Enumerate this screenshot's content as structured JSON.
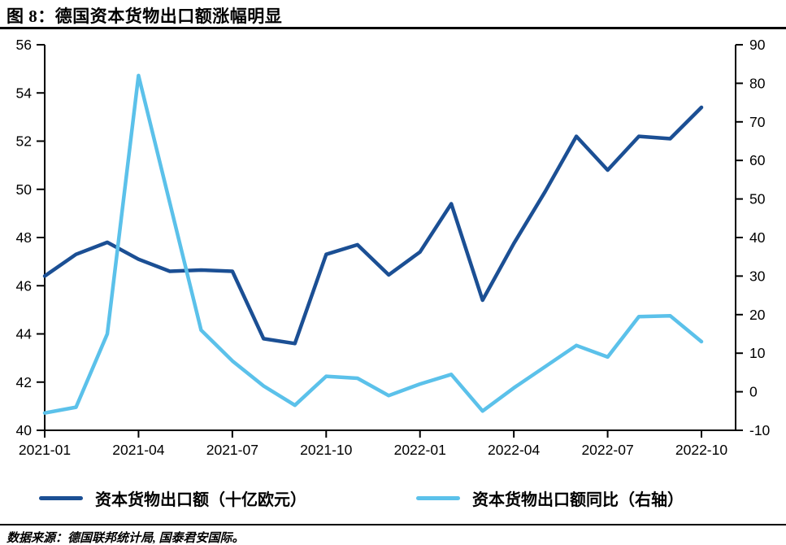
{
  "title": "图 8：德国资本货物出口额涨幅明显",
  "footer": {
    "source_note": "数据来源：德国联邦统计局, 国泰君安国际。"
  },
  "colors": {
    "dark_blue": "#1B4F94",
    "light_blue": "#5BC1EA",
    "axis_black": "#000000"
  },
  "chart_data": {
    "type": "line",
    "title": "图 8：德国资本货物出口额涨幅明显",
    "x": [
      "2021-01",
      "2021-02",
      "2021-03",
      "2021-04",
      "2021-05",
      "2021-06",
      "2021-07",
      "2021-08",
      "2021-09",
      "2021-10",
      "2021-11",
      "2021-12",
      "2022-01",
      "2022-02",
      "2022-03",
      "2022-04",
      "2022-05",
      "2022-06",
      "2022-07",
      "2022-08",
      "2022-09",
      "2022-10"
    ],
    "x_tick_labels": [
      "2021-01",
      "2021-04",
      "2021-07",
      "2021-10",
      "2022-01",
      "2022-04",
      "2022-07",
      "2022-10"
    ],
    "series": [
      {
        "name": "资本货物出口额（十亿欧元）",
        "axis": "left",
        "color": "#1B4F94",
        "values": [
          46.4,
          47.3,
          47.8,
          47.1,
          46.6,
          46.65,
          46.6,
          43.8,
          43.6,
          47.3,
          47.7,
          46.45,
          47.4,
          49.4,
          45.4,
          47.75,
          49.9,
          52.2,
          50.8,
          52.2,
          52.1,
          53.4
        ]
      },
      {
        "name": "资本货物出口额同比（右轴）",
        "axis": "right",
        "color": "#5BC1EA",
        "values": [
          -5.5,
          -4,
          15,
          82,
          49,
          16,
          8,
          1.5,
          -3.5,
          4,
          3.5,
          -1,
          2,
          4.5,
          -5,
          1,
          6.5,
          12,
          9,
          19.5,
          19.7,
          13
        ]
      }
    ],
    "left_axis": {
      "min": 40,
      "max": 56,
      "ticks": [
        40,
        42,
        44,
        46,
        48,
        50,
        52,
        54,
        56
      ]
    },
    "right_axis": {
      "min": -10,
      "max": 90,
      "ticks": [
        -10,
        0,
        10,
        20,
        30,
        40,
        50,
        60,
        70,
        80,
        90
      ]
    },
    "grid": false,
    "legend_position": "bottom"
  }
}
